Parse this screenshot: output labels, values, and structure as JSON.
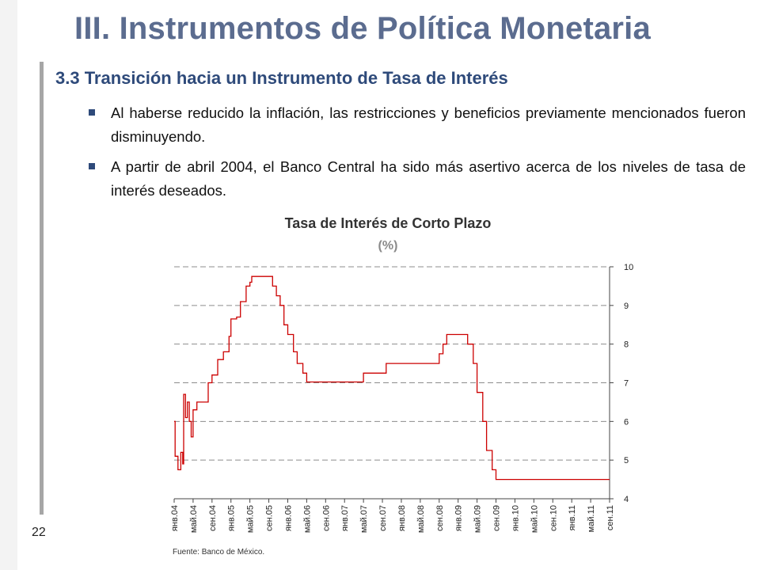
{
  "slide": {
    "title": "III. Instrumentos de Política Monetaria",
    "subtitle": "3.3 Transición hacia un Instrumento de Tasa de Interés",
    "bullets": [
      "Al haberse reducido la inflación, las restricciones y beneficios previamente mencionados fueron disminuyendo.",
      "A partir de abril 2004, el Banco Central ha sido más asertivo acerca de los niveles de tasa de interés deseados."
    ],
    "page_number": "22",
    "source": "Fuente: Banco de México."
  },
  "colors": {
    "title": "#5b6c8f",
    "subtitle": "#2e4a7a",
    "series": "#cc0000",
    "grid": "#8c8c8c"
  },
  "chart_data": {
    "type": "line",
    "title": "Tasa de Interés de Corto Plazo",
    "subtitle": "(%)",
    "x_tick_labels": [
      "янв.04",
      "май.04",
      "сен.04",
      "янв.05",
      "май.05",
      "сен.05",
      "янв.06",
      "май.06",
      "сен.06",
      "янв.07",
      "май.07",
      "сен.07",
      "янв.08",
      "май.08",
      "сен.08",
      "янв.09",
      "май.09",
      "сен.09",
      "янв.10",
      "май.10",
      "сен.10",
      "янв.11",
      "май.11",
      "сен.11"
    ],
    "y_tick_labels": [
      "4",
      "5",
      "6",
      "7",
      "8",
      "9",
      "10"
    ],
    "ylim": [
      4,
      10
    ],
    "y_axis_side": "right",
    "grid": true,
    "series": [
      {
        "points": [
          [
            0,
            6.0
          ],
          [
            0.05,
            5.1
          ],
          [
            0.2,
            4.75
          ],
          [
            0.35,
            5.2
          ],
          [
            0.45,
            4.9
          ],
          [
            0.5,
            6.7
          ],
          [
            0.6,
            6.1
          ],
          [
            0.7,
            6.5
          ],
          [
            0.8,
            6.0
          ],
          [
            0.9,
            5.6
          ],
          [
            1.0,
            6.3
          ],
          [
            1.2,
            6.5
          ],
          [
            1.5,
            6.5
          ],
          [
            1.8,
            7.0
          ],
          [
            2.0,
            7.2
          ],
          [
            2.3,
            7.6
          ],
          [
            2.6,
            7.8
          ],
          [
            2.9,
            8.2
          ],
          [
            3.0,
            8.65
          ],
          [
            3.3,
            8.7
          ],
          [
            3.5,
            9.1
          ],
          [
            3.8,
            9.5
          ],
          [
            4.0,
            9.6
          ],
          [
            4.1,
            9.75
          ],
          [
            5.0,
            9.75
          ],
          [
            5.2,
            9.5
          ],
          [
            5.4,
            9.25
          ],
          [
            5.6,
            9.0
          ],
          [
            5.8,
            8.5
          ],
          [
            6.0,
            8.25
          ],
          [
            6.3,
            7.8
          ],
          [
            6.5,
            7.5
          ],
          [
            6.8,
            7.25
          ],
          [
            7.0,
            7.02
          ],
          [
            8.0,
            7.02
          ],
          [
            9.0,
            7.02
          ],
          [
            9.3,
            7.02
          ],
          [
            9.8,
            7.02
          ],
          [
            10.0,
            7.25
          ],
          [
            11.0,
            7.25
          ],
          [
            11.2,
            7.5
          ],
          [
            12.0,
            7.5
          ],
          [
            13.0,
            7.5
          ],
          [
            13.8,
            7.5
          ],
          [
            14.0,
            7.75
          ],
          [
            14.2,
            8.0
          ],
          [
            14.4,
            8.25
          ],
          [
            15.4,
            8.25
          ],
          [
            15.5,
            8.0
          ],
          [
            15.8,
            7.5
          ],
          [
            16.0,
            6.75
          ],
          [
            16.3,
            6.0
          ],
          [
            16.5,
            5.25
          ],
          [
            16.8,
            4.75
          ],
          [
            17.0,
            4.5
          ],
          [
            23.0,
            4.5
          ]
        ]
      }
    ]
  }
}
